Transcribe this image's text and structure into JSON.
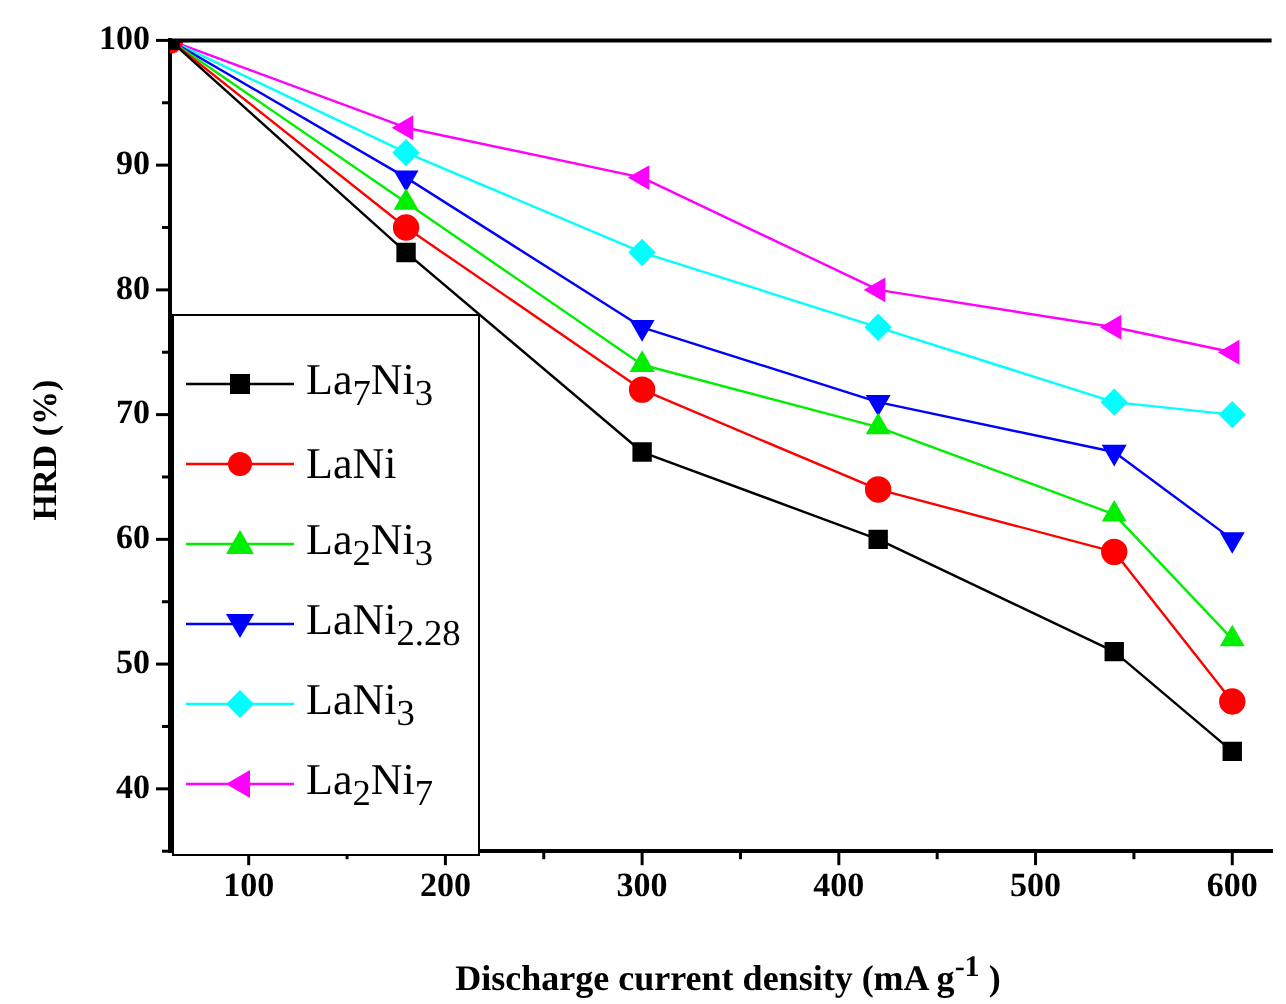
{
  "chart_data": {
    "type": "line",
    "xlabel": "Discharge current density (mA g$^{-1}$ )",
    "ylabel": "HRD (%)",
    "x": [
      60,
      180,
      300,
      420,
      540,
      600
    ],
    "xlim": [
      60,
      620
    ],
    "xticks": [
      100,
      200,
      300,
      400,
      500,
      600
    ],
    "ylim": [
      35,
      100
    ],
    "yticks": [
      40,
      50,
      60,
      70,
      80,
      90,
      100
    ],
    "grid": false,
    "legend": "bottom left",
    "series": [
      {
        "name": "La$_{7}$Ni$_{3}$",
        "color": "#000000",
        "marker": "square",
        "values": [
          100,
          83,
          67,
          60,
          51,
          43
        ]
      },
      {
        "name": "LaNi",
        "color": "#ff0000",
        "marker": "circle",
        "values": [
          100,
          85,
          72,
          64,
          59,
          47
        ]
      },
      {
        "name": "La$_{2}$Ni$_{3}$",
        "color": "#00ee00",
        "marker": "triangle",
        "values": [
          100,
          87,
          74,
          69,
          62,
          52
        ]
      },
      {
        "name": "LaNi$_{2.28}$",
        "color": "#0000ff",
        "marker": "triangle-down",
        "values": [
          100,
          89,
          77,
          71,
          67,
          60
        ]
      },
      {
        "name": "LaNi$_{3}$",
        "color": "#00ffff",
        "marker": "diamond",
        "values": [
          100,
          91,
          83,
          77,
          71,
          70
        ]
      },
      {
        "name": "La$_{2}$Ni$_{7}$",
        "color": "#ff00ff",
        "marker": "triangle-left",
        "values": [
          100,
          93,
          89,
          80,
          77,
          75
        ]
      }
    ]
  }
}
